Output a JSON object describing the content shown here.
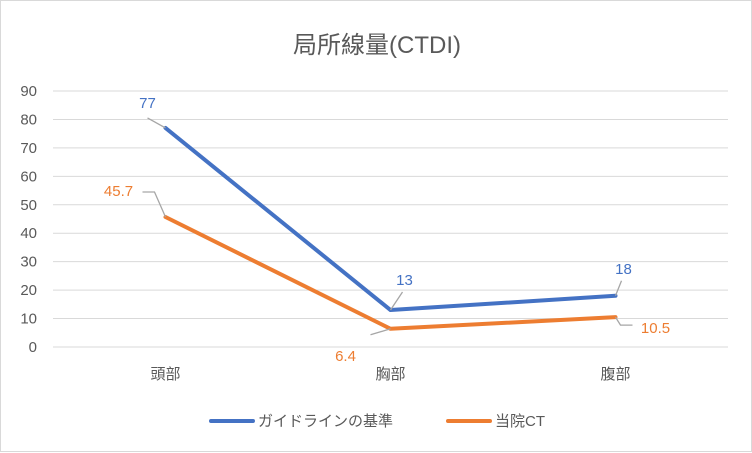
{
  "chart_data": {
    "type": "line",
    "title": "局所線量(CTDI)",
    "categories": [
      "頭部",
      "胸部",
      "腹部"
    ],
    "series": [
      {
        "name": "ガイドラインの基準",
        "values": [
          77,
          13,
          18
        ],
        "color": "#4472C4",
        "labels": [
          "77",
          "13",
          "18"
        ]
      },
      {
        "name": "当院CT",
        "values": [
          45.7,
          6.4,
          10.5
        ],
        "color": "#ED7D31",
        "labels": [
          "45.7",
          "6.4",
          "10.5"
        ]
      }
    ],
    "ylim": [
      0,
      90
    ],
    "yticks": [
      "0",
      "10",
      "20",
      "30",
      "40",
      "50",
      "60",
      "70",
      "80",
      "90"
    ],
    "grid": true,
    "legend": "bottom",
    "xlabel": "",
    "ylabel": ""
  }
}
